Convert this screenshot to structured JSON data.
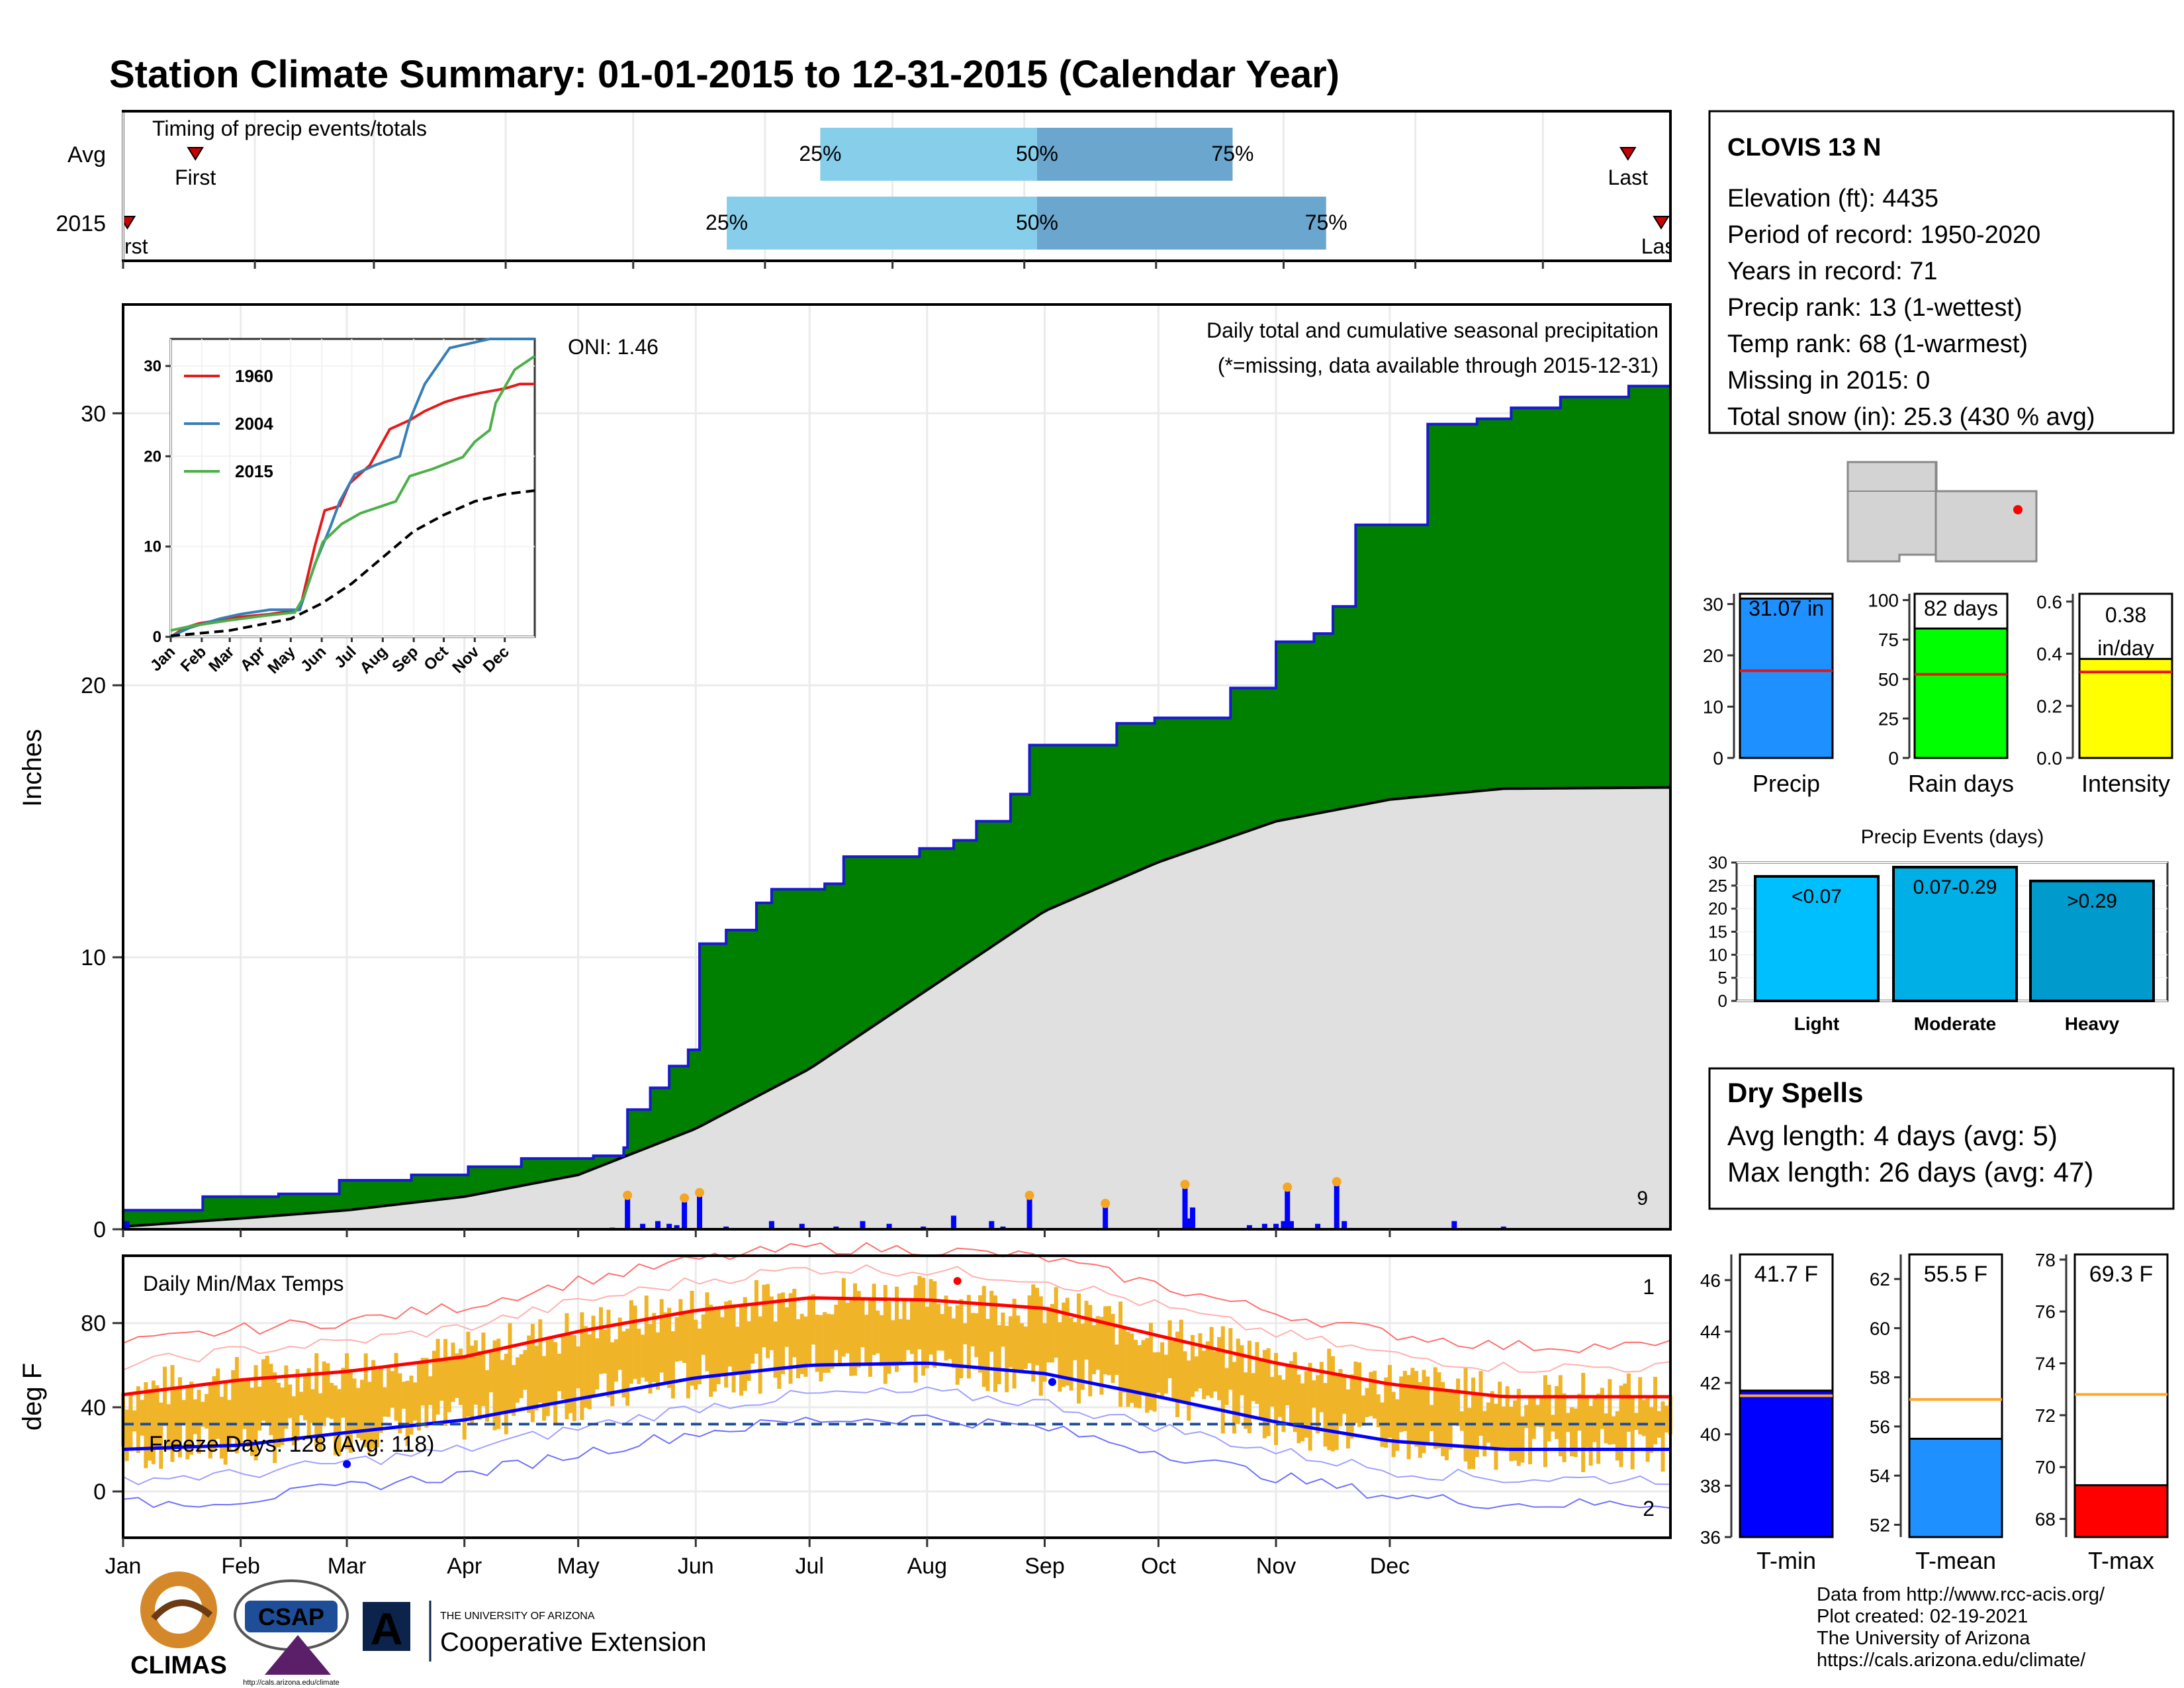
{
  "title": "Station Climate Summary: 01-01-2015 to 12-31-2015 (Calendar Year)",
  "colors": {
    "title": "#000080",
    "green": "#008000",
    "blue": "#0000ff",
    "gray_fill": "#e0e0e0",
    "light_blue": "#87ceeb",
    "mid_blue": "#6aa6cd",
    "orange": "#f0b429",
    "red": "#ff0000",
    "dry": "#a52a2a"
  },
  "timing": {
    "label": "Timing of precip events/totals",
    "rows": [
      {
        "name": "Avg",
        "first_day": 18,
        "q25_day": 165,
        "q50_day": 216,
        "q75_day": 262,
        "last_day": 355,
        "first_label": "First",
        "last_label": "Last",
        "q25_label": "25%",
        "q50_label": "50%",
        "q75_label": "75%"
      },
      {
        "name": "2015",
        "first_day": 2,
        "q25_day": 143,
        "q50_day": 216,
        "q75_day": 284,
        "last_day": 365,
        "first_label": "First",
        "last_label": "Last",
        "q25_label": "25%",
        "q50_label": "50%",
        "q75_label": "75%"
      }
    ]
  },
  "months": [
    "Jan",
    "Feb",
    "Mar",
    "Apr",
    "May",
    "Jun",
    "Jul",
    "Aug",
    "Sep",
    "Oct",
    "Nov",
    "Dec"
  ],
  "month_start_days": [
    1,
    32,
    60,
    91,
    121,
    152,
    182,
    213,
    244,
    274,
    305,
    335
  ],
  "precip_panel": {
    "ylabel": "Inches",
    "yticks": [
      0,
      10,
      20,
      30
    ],
    "ylim": [
      0,
      34
    ],
    "oni": "ONI: 1.46",
    "label1": "Daily total and cumulative seasonal precipitation",
    "label2": "(*=missing, data available through 2015-12-31)",
    "corner_count": "9"
  },
  "inset": {
    "yticks": [
      0,
      10,
      20,
      30
    ],
    "ylim": [
      0,
      33
    ],
    "legend": [
      {
        "name": "1960",
        "color": "#e41a1c"
      },
      {
        "name": "2004",
        "color": "#377eb8"
      },
      {
        "name": "2015",
        "color": "#4daf4a"
      }
    ],
    "months": [
      "Jan",
      "Feb",
      "Mar",
      "Apr",
      "May",
      "Jun",
      "Jul",
      "Aug",
      "Sep",
      "Oct",
      "Nov",
      "Dec"
    ]
  },
  "temp_panel": {
    "ylabel": "deg F",
    "title": "Daily Min/Max Temps",
    "yticks": [
      0,
      40,
      80
    ],
    "ylim": [
      -22,
      112
    ],
    "freeze": "Freeze Days: 128 (Avg: 118)",
    "record_high_count": "1",
    "record_low_count": "2"
  },
  "station": {
    "name": "CLOVIS 13 N",
    "lines": [
      "Elevation (ft): 4435",
      "Period of record: 1950-2020",
      "Years in record: 71",
      "Precip rank: 13 (1-wettest)",
      "Temp rank: 68 (1-warmest)",
      "Missing in 2015: 0",
      "Total snow (in): 25.3 (430 % avg)"
    ]
  },
  "mini_bars": [
    {
      "name": "Precip",
      "value": 31.07,
      "avg": 17.0,
      "label": "31.07 in",
      "ylim": [
        0,
        32
      ],
      "yticks": [
        0,
        10,
        20,
        30
      ],
      "color": "#1e90ff"
    },
    {
      "name": "Rain days",
      "value": 82,
      "avg": 53,
      "label": "82 days",
      "ylim": [
        0,
        104
      ],
      "yticks": [
        0,
        25,
        50,
        75,
        100
      ],
      "color": "#00ff00"
    },
    {
      "name": "Intensity",
      "value": 0.38,
      "avg": 0.33,
      "label": "0.38 in/day",
      "ylim": [
        0,
        0.63
      ],
      "yticks": [
        0.0,
        0.2,
        0.4,
        0.6
      ],
      "color": "#ffff00"
    }
  ],
  "precip_events": {
    "title": "Precip Events (days)",
    "yticks": [
      0,
      5,
      10,
      15,
      20,
      25,
      30
    ],
    "ylim": [
      0,
      30
    ],
    "bars": [
      {
        "name": "Light",
        "value": 27,
        "label": "<0.07",
        "color": "#00bfff"
      },
      {
        "name": "Moderate",
        "value": 29,
        "label": "0.07-0.29",
        "color": "#00afe5"
      },
      {
        "name": "Heavy",
        "value": 26,
        "label": ">0.29",
        "color": "#009acd"
      }
    ]
  },
  "dry_spells": {
    "title": "Dry Spells",
    "avg_line": "Avg length: 4 days (avg: 5)",
    "max_line": "Max length: 26 days (avg: 47)"
  },
  "temp_bars": [
    {
      "name": "T-min",
      "value": 41.7,
      "avg": 41.5,
      "label": "41.7 F",
      "ylim": [
        36,
        47
      ],
      "yticks": [
        36,
        38,
        40,
        42,
        44,
        46
      ],
      "color": "#0000ff"
    },
    {
      "name": "T-mean",
      "value": 55.5,
      "avg": 57.1,
      "label": "55.5 F",
      "ylim": [
        51.5,
        63
      ],
      "yticks": [
        52,
        54,
        56,
        58,
        60,
        62
      ],
      "color": "#1e90ff"
    },
    {
      "name": "T-max",
      "value": 69.3,
      "avg": 72.8,
      "label": "69.3 F",
      "ylim": [
        67.3,
        78.2
      ],
      "yticks": [
        68,
        70,
        72,
        74,
        76,
        78
      ],
      "color": "#ff0000"
    }
  ],
  "footer": {
    "lines": [
      "Data from http://www.rcc-acis.org/",
      "Plot created: 02-19-2021",
      "The University of Arizona",
      "https://cals.arizona.edu/climate/"
    ]
  },
  "logos": {
    "climas": "CLIMAS",
    "csap": "CSAP",
    "csap_url": "http://cals.arizona.edu/climate",
    "ua_letter": "A",
    "ua_small": "THE UNIVERSITY OF ARIZONA",
    "ua_big": "Cooperative Extension"
  },
  "chart_data": {
    "type": "area",
    "title": "Station Climate Summary: 01-01-2015 to 12-31-2015 (Calendar Year)",
    "xlabel": "",
    "ylabel": "Inches",
    "ylim": [
      0,
      34
    ],
    "series": [
      {
        "name": "2015 cumulative",
        "points": [
          [
            1,
            0.7
          ],
          [
            10,
            0.7
          ],
          [
            22,
            1.2
          ],
          [
            42,
            1.3
          ],
          [
            58,
            1.8
          ],
          [
            77,
            2.0
          ],
          [
            92,
            2.3
          ],
          [
            106,
            2.6
          ],
          [
            125,
            2.7
          ],
          [
            133,
            3.0
          ],
          [
            134,
            4.4
          ],
          [
            140,
            5.2
          ],
          [
            145,
            6.0
          ],
          [
            150,
            6.6
          ],
          [
            153,
            10.5
          ],
          [
            160,
            11.0
          ],
          [
            168,
            12.0
          ],
          [
            172,
            12.5
          ],
          [
            186,
            12.7
          ],
          [
            191,
            13.7
          ],
          [
            211,
            14.0
          ],
          [
            220,
            14.3
          ],
          [
            226,
            15.0
          ],
          [
            235,
            16.0
          ],
          [
            240,
            17.8
          ],
          [
            263,
            18.6
          ],
          [
            273,
            18.8
          ],
          [
            293,
            19.9
          ],
          [
            305,
            21.6
          ],
          [
            315,
            21.9
          ],
          [
            320,
            22.9
          ],
          [
            326,
            25.9
          ],
          [
            345,
            29.6
          ],
          [
            358,
            29.8
          ],
          [
            367,
            30.2
          ],
          [
            380,
            30.6
          ],
          [
            398,
            31.0
          ],
          [
            409,
            31.1
          ]
        ]
      },
      {
        "name": "Avg cumulative",
        "points": [
          [
            1,
            0.1
          ],
          [
            32,
            0.4
          ],
          [
            60,
            0.7
          ],
          [
            91,
            1.2
          ],
          [
            121,
            2.0
          ],
          [
            152,
            3.7
          ],
          [
            182,
            5.9
          ],
          [
            213,
            8.8
          ],
          [
            244,
            11.7
          ],
          [
            274,
            13.5
          ],
          [
            305,
            15.0
          ],
          [
            335,
            15.8
          ],
          [
            365,
            16.2
          ]
        ]
      }
    ],
    "daily_precip": [
      [
        2,
        0.3
      ],
      [
        33,
        0.05
      ],
      [
        69,
        0.04
      ],
      [
        130,
        0.06
      ],
      [
        134,
        1.2
      ],
      [
        138,
        0.2
      ],
      [
        142,
        0.3
      ],
      [
        145,
        0.2
      ],
      [
        147,
        0.15
      ],
      [
        149,
        1.1
      ],
      [
        153,
        1.3
      ],
      [
        160,
        0.1
      ],
      [
        172,
        0.3
      ],
      [
        180,
        0.2
      ],
      [
        189,
        0.1
      ],
      [
        196,
        0.3
      ],
      [
        203,
        0.2
      ],
      [
        212,
        0.1
      ],
      [
        220,
        0.5
      ],
      [
        230,
        0.3
      ],
      [
        233,
        0.1
      ],
      [
        240,
        1.2
      ],
      [
        260,
        0.9
      ],
      [
        281,
        1.6
      ],
      [
        282,
        0.4
      ],
      [
        283,
        0.8
      ],
      [
        298,
        0.15
      ],
      [
        302,
        0.2
      ],
      [
        305,
        0.2
      ],
      [
        307,
        0.3
      ],
      [
        308,
        1.5
      ],
      [
        309,
        0.3
      ],
      [
        316,
        0.2
      ],
      [
        321,
        1.7
      ],
      [
        323,
        0.3
      ],
      [
        352,
        0.3
      ],
      [
        365,
        0.1
      ]
    ],
    "temps": {
      "ylabel": "deg F",
      "normal_max": [
        [
          1,
          46
        ],
        [
          32,
          53
        ],
        [
          60,
          57
        ],
        [
          91,
          64
        ],
        [
          121,
          76
        ],
        [
          152,
          86
        ],
        [
          182,
          92
        ],
        [
          213,
          91
        ],
        [
          244,
          87
        ],
        [
          274,
          74
        ],
        [
          305,
          61
        ],
        [
          335,
          51
        ],
        [
          365,
          45
        ]
      ],
      "normal_min": [
        [
          1,
          20
        ],
        [
          32,
          22
        ],
        [
          60,
          28
        ],
        [
          91,
          34
        ],
        [
          121,
          44
        ],
        [
          152,
          54
        ],
        [
          182,
          60
        ],
        [
          213,
          61
        ],
        [
          244,
          56
        ],
        [
          274,
          45
        ],
        [
          305,
          33
        ],
        [
          335,
          24
        ],
        [
          365,
          20
        ]
      ],
      "freeze_line": 32,
      "freeze_days": 128,
      "freeze_days_avg": 118
    },
    "inset": {
      "type": "line",
      "series": [
        {
          "name": "1960",
          "points": [
            [
              1,
              0
            ],
            [
              15,
              1
            ],
            [
              30,
              1.5
            ],
            [
              70,
              2.2
            ],
            [
              100,
              2.5
            ],
            [
              130,
              3
            ],
            [
              145,
              10
            ],
            [
              155,
              14
            ],
            [
              170,
              14.5
            ],
            [
              180,
              17
            ],
            [
              200,
              19
            ],
            [
              220,
              23
            ],
            [
              240,
              24
            ],
            [
              255,
              25
            ],
            [
              275,
              26
            ],
            [
              290,
              26.5
            ],
            [
              310,
              27
            ],
            [
              335,
              27.5
            ],
            [
              350,
              28
            ],
            [
              365,
              28
            ]
          ]
        },
        {
          "name": "2004",
          "points": [
            [
              1,
              0
            ],
            [
              10,
              0.5
            ],
            [
              20,
              1
            ],
            [
              50,
              2
            ],
            [
              70,
              2.5
            ],
            [
              100,
              3
            ],
            [
              130,
              3
            ],
            [
              145,
              8
            ],
            [
              160,
              12
            ],
            [
              170,
              15
            ],
            [
              185,
              18
            ],
            [
              205,
              19
            ],
            [
              230,
              20
            ],
            [
              240,
              24
            ],
            [
              255,
              28
            ],
            [
              280,
              32
            ],
            [
              300,
              32.5
            ],
            [
              320,
              33
            ],
            [
              335,
              33
            ],
            [
              365,
              33
            ]
          ]
        },
        {
          "name": "2015",
          "points": [
            [
              1,
              0.7
            ],
            [
              22,
              1.2
            ],
            [
              58,
              1.8
            ],
            [
              92,
              2.3
            ],
            [
              125,
              2.7
            ],
            [
              134,
              4.4
            ],
            [
              153,
              10.5
            ],
            [
              172,
              12.5
            ],
            [
              191,
              13.7
            ],
            [
              226,
              15.0
            ],
            [
              240,
              17.8
            ],
            [
              263,
              18.6
            ],
            [
              293,
              19.9
            ],
            [
              305,
              21.6
            ],
            [
              320,
              22.9
            ],
            [
              326,
              25.9
            ],
            [
              345,
              29.6
            ],
            [
              365,
              31.1
            ]
          ]
        },
        {
          "name": "Average",
          "points": [
            [
              1,
              0.1
            ],
            [
              60,
              0.7
            ],
            [
              121,
              2.0
            ],
            [
              152,
              3.7
            ],
            [
              182,
              5.9
            ],
            [
              213,
              8.8
            ],
            [
              244,
              11.7
            ],
            [
              274,
              13.5
            ],
            [
              305,
              15.0
            ],
            [
              335,
              15.8
            ],
            [
              365,
              16.2
            ]
          ]
        }
      ]
    }
  }
}
